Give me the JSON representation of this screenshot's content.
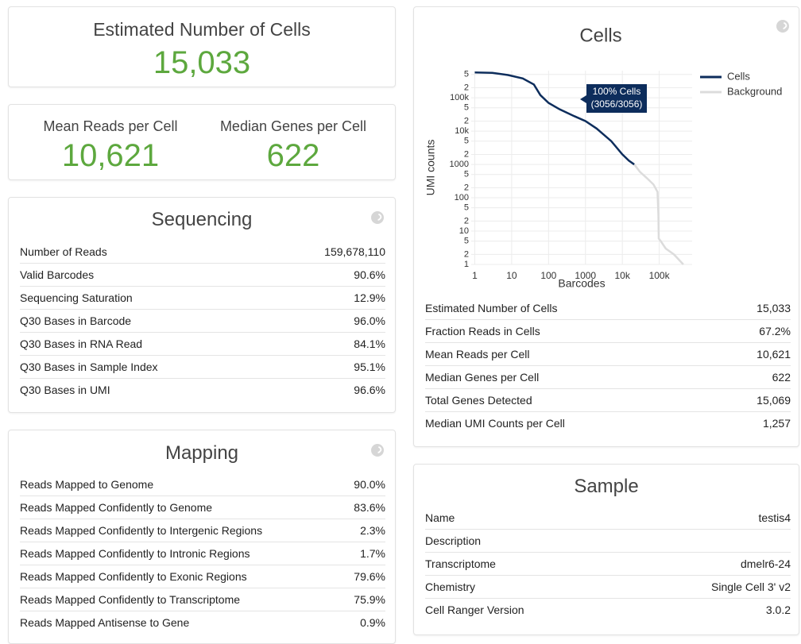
{
  "summary": {
    "estimated_cells": {
      "label": "Estimated Number of Cells",
      "value": "15,033"
    },
    "mean_reads": {
      "label": "Mean Reads per Cell",
      "value": "10,621"
    },
    "median_genes": {
      "label": "Median Genes per Cell",
      "value": "622"
    }
  },
  "sequencing": {
    "title": "Sequencing",
    "rows": [
      [
        "Number of Reads",
        "159,678,110"
      ],
      [
        "Valid Barcodes",
        "90.6%"
      ],
      [
        "Sequencing Saturation",
        "12.9%"
      ],
      [
        "Q30 Bases in Barcode",
        "96.0%"
      ],
      [
        "Q30 Bases in RNA Read",
        "84.1%"
      ],
      [
        "Q30 Bases in Sample Index",
        "95.1%"
      ],
      [
        "Q30 Bases in UMI",
        "96.6%"
      ]
    ]
  },
  "mapping": {
    "title": "Mapping",
    "rows": [
      [
        "Reads Mapped to Genome",
        "90.0%"
      ],
      [
        "Reads Mapped Confidently to Genome",
        "83.6%"
      ],
      [
        "Reads Mapped Confidently to Intergenic Regions",
        "2.3%"
      ],
      [
        "Reads Mapped Confidently to Intronic Regions",
        "1.7%"
      ],
      [
        "Reads Mapped Confidently to Exonic Regions",
        "79.6%"
      ],
      [
        "Reads Mapped Confidently to Transcriptome",
        "75.9%"
      ],
      [
        "Reads Mapped Antisense to Gene",
        "0.9%"
      ]
    ]
  },
  "cells": {
    "rows": [
      [
        "Estimated Number of Cells",
        "15,033"
      ],
      [
        "Fraction Reads in Cells",
        "67.2%"
      ],
      [
        "Mean Reads per Cell",
        "10,621"
      ],
      [
        "Median Genes per Cell",
        "622"
      ],
      [
        "Total Genes Detected",
        "15,069"
      ],
      [
        "Median UMI Counts per Cell",
        "1,257"
      ]
    ]
  },
  "sample": {
    "title": "Sample",
    "rows": [
      [
        "Name",
        "testis4"
      ],
      [
        "Description"
      ],
      [
        "Transcriptome",
        "dmelr6-24"
      ],
      [
        "Chemistry",
        "Single Cell 3' v2"
      ],
      [
        "Cell Ranger Version",
        "3.0.2"
      ]
    ]
  },
  "chart_data": {
    "type": "line",
    "title": "Cells",
    "x_label": "Barcodes",
    "y_label": "UMI counts",
    "x_log": true,
    "y_log": true,
    "grid": true,
    "legend": "right",
    "annotation": [
      "100% Cells",
      "(3056/3056)"
    ],
    "xlim": [
      0.8,
      780000
    ],
    "ylim": [
      1,
      650000
    ],
    "xticks": [
      1,
      10,
      100,
      1000,
      {
        "value": 10000,
        "label": "10k"
      },
      {
        "value": 100000,
        "label": "100k"
      }
    ],
    "yticks": [
      1,
      2,
      5,
      10,
      {
        "value": 20,
        "label": "2"
      },
      {
        "value": 50,
        "label": "5"
      },
      100,
      {
        "value": 200,
        "label": "2"
      },
      {
        "value": 500,
        "label": "5"
      },
      1000,
      {
        "value": 2000,
        "label": "2"
      },
      {
        "value": 5000,
        "label": "5"
      },
      {
        "value": 10000,
        "label": "10k"
      },
      {
        "value": 20000,
        "label": "2"
      },
      {
        "value": 50000,
        "label": "5"
      },
      {
        "value": 100000,
        "label": "100k"
      },
      {
        "value": 200000,
        "label": "2"
      },
      {
        "value": 500000,
        "label": "5"
      }
    ],
    "series": [
      {
        "name": "Cells",
        "color": "#0d2d5c",
        "x": [
          1,
          3,
          8,
          20,
          40,
          60,
          100,
          200,
          500,
          1000,
          2000,
          5000,
          10000,
          15000,
          21000
        ],
        "values": [
          575000,
          560000,
          480000,
          380000,
          250000,
          120000,
          70000,
          45000,
          28000,
          20000,
          12000,
          5000,
          2000,
          1300,
          1000
        ]
      },
      {
        "name": "Background",
        "color": "#dcdcdc",
        "x": [
          21000,
          30000,
          45000,
          70000,
          90000,
          95000,
          97000,
          110000,
          150000,
          250000,
          450000
        ],
        "values": [
          1000,
          600,
          400,
          250,
          150,
          30,
          6,
          5,
          3,
          2,
          1
        ]
      }
    ]
  }
}
